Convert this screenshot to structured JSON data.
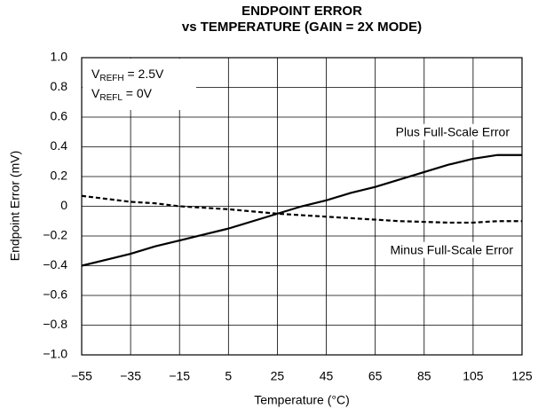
{
  "chart_data": {
    "type": "line",
    "title": [
      "ENDPOINT ERROR",
      "vs TEMPERATURE (GAIN = 2X MODE)"
    ],
    "x_label": "Temperature (°C)",
    "y_label": "Endpoint Error (mV)",
    "annotations": [
      {
        "base": "V",
        "subscript": "REFH",
        "text": " = 2.5V"
      },
      {
        "base": "V",
        "subscript": "REFL",
        "text": " = 0V"
      }
    ],
    "x": [
      -55,
      -45,
      -35,
      -25,
      -15,
      -5,
      5,
      15,
      25,
      35,
      45,
      55,
      65,
      75,
      85,
      95,
      105,
      115,
      125
    ],
    "series": [
      {
        "name": "Plus Full-Scale Error",
        "color": "#000000",
        "dash": "solid",
        "values": [
          -0.4,
          -0.36,
          -0.32,
          -0.27,
          -0.23,
          -0.19,
          -0.15,
          -0.1,
          -0.05,
          0.0,
          0.04,
          0.09,
          0.13,
          0.18,
          0.23,
          0.28,
          0.32,
          0.345,
          0.345
        ]
      },
      {
        "name": "Minus Full-Scale Error",
        "color": "#000000",
        "dash": "dashed",
        "values": [
          0.07,
          0.05,
          0.03,
          0.02,
          0.0,
          -0.01,
          -0.02,
          -0.035,
          -0.05,
          -0.06,
          -0.07,
          -0.08,
          -0.09,
          -0.1,
          -0.105,
          -0.11,
          -0.11,
          -0.1,
          -0.1
        ]
      }
    ],
    "xlim": [
      -55,
      125
    ],
    "xticks": [
      {
        "value": -55,
        "label": "−55"
      },
      {
        "value": -35,
        "label": "−35"
      },
      {
        "value": -15,
        "label": "−15"
      },
      5,
      25,
      45,
      65,
      85,
      105,
      125
    ],
    "ylim": [
      -1.0,
      1.0
    ],
    "yticks": [
      {
        "value": -1.0,
        "label": "−1.0"
      },
      {
        "value": -0.8,
        "label": "−0.8"
      },
      {
        "value": -0.6,
        "label": "−0.6"
      },
      {
        "value": -0.4,
        "label": "−0.4"
      },
      {
        "value": -0.2,
        "label": "−0.2"
      },
      0,
      0.2,
      0.4,
      0.6,
      0.8,
      {
        "value": 1.0,
        "label": "1.0"
      }
    ],
    "grid": true
  }
}
